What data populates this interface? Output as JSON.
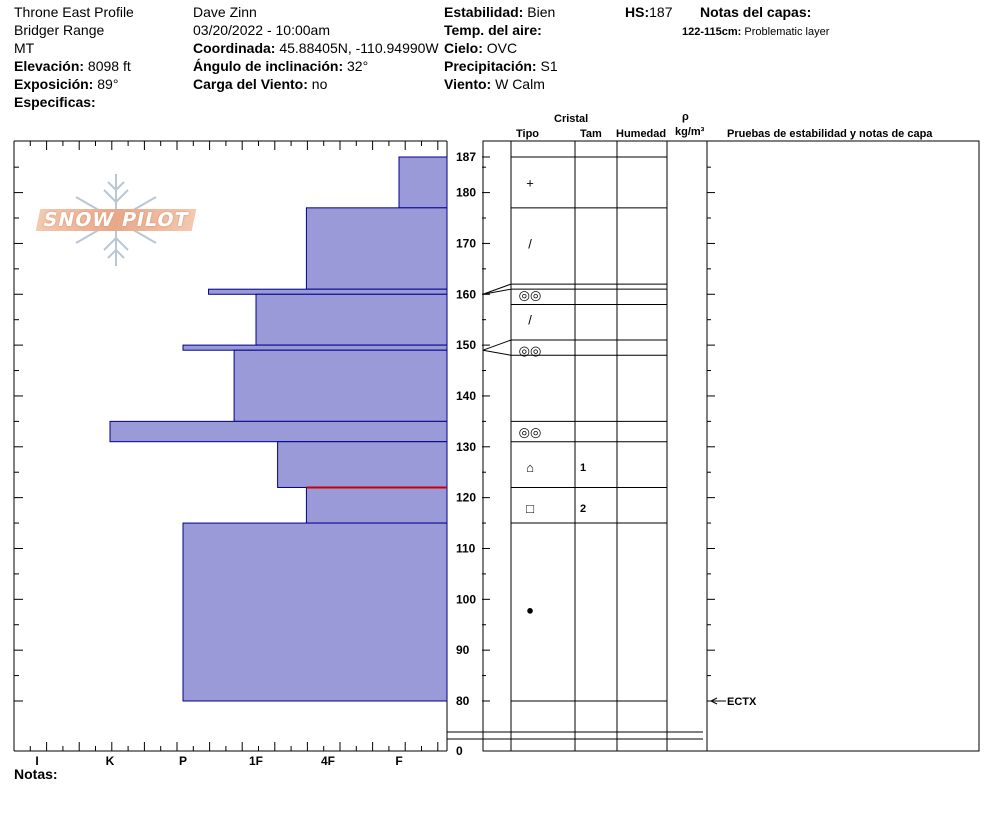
{
  "header": {
    "profile_name": "Throne East Profile",
    "range": "Bridger Range",
    "state": "MT",
    "elevation_label": "Elevación:",
    "elevation_value": "8098 ft",
    "aspect_label": "Exposición:",
    "aspect_value": "89°",
    "specifics_label": "Especificas:",
    "observer": "Dave Zinn",
    "datetime": "03/20/2022 - 10:00am",
    "coord_label": "Coordinada:",
    "coord_value": "45.88405N, -110.94990W",
    "slope_label": "Ángulo de inclinación:",
    "slope_value": "32°",
    "wind_load_label": "Carga del Viento:",
    "wind_load_value": "no",
    "stability_label": "Estabilidad:",
    "stability_value": "Bien",
    "air_temp_label": "Temp. del aire:",
    "air_temp_value": "",
    "sky_label": "Cielo:",
    "sky_value": "OVC",
    "precip_label": "Precipitación:",
    "precip_value": "S1",
    "wind_label": "Viento:",
    "wind_value": "W Calm",
    "hs_label": "HS:",
    "hs_value": "187",
    "layer_notes_title": "Notas del capas:",
    "layer_note_range": "122-115cm:",
    "layer_note_text": "Problematic layer"
  },
  "columns": {
    "crystal": "Cristal",
    "type": "Tipo",
    "size": "Tam",
    "moisture": "Humedad",
    "density_symbol": "ρ",
    "density_unit": "kg/m³",
    "tests": "Pruebas de estabilidad y notas de capa"
  },
  "notes_label": "Notas:",
  "logo_text": "SNOW PILOT",
  "colors": {
    "bar_fill": "#9a9ad8",
    "bar_stroke": "#00008b",
    "problem_line": "#cc0000",
    "axis": "#000000"
  },
  "chart_data": {
    "type": "bar",
    "orientation": "horizontal",
    "y_ticks": [
      0,
      80,
      90,
      100,
      110,
      120,
      130,
      140,
      150,
      160,
      170,
      180,
      187
    ],
    "ylim": [
      0,
      187
    ],
    "x_ticks": [
      "I",
      "K",
      "P",
      "1F",
      "4F",
      "F"
    ],
    "hardness_layers": [
      {
        "top": 187,
        "bottom": 177,
        "hardness": "F"
      },
      {
        "top": 177,
        "bottom": 161,
        "hardness": "4F-"
      },
      {
        "top": 161,
        "bottom": 160,
        "hardness": "P+"
      },
      {
        "top": 160,
        "bottom": 150,
        "hardness": "1F"
      },
      {
        "top": 150,
        "bottom": 149,
        "hardness": "P"
      },
      {
        "top": 149,
        "bottom": 135,
        "hardness": "1F+"
      },
      {
        "top": 135,
        "bottom": 131,
        "hardness": "K"
      },
      {
        "top": 131,
        "bottom": 122,
        "hardness": "1F-"
      },
      {
        "top": 122,
        "bottom": 115,
        "hardness": "4F-"
      },
      {
        "top": 115,
        "bottom": 80,
        "hardness": "P"
      }
    ],
    "hardness_index": {
      "F": 5,
      "4F-": 3.7,
      "P+": 2.35,
      "1F": 3,
      "P": 2,
      "1F+": 2.7,
      "K": 1,
      "1F-": 3.3
    },
    "layer_boundaries": [
      187,
      177,
      162,
      161,
      158,
      151,
      148,
      135,
      131,
      122,
      115,
      80
    ],
    "grain_symbols": [
      {
        "height": 182,
        "symbol": "+"
      },
      {
        "height": 170,
        "symbol": "/"
      },
      {
        "height": 160,
        "symbol": "◎◎"
      },
      {
        "height": 155,
        "symbol": "/"
      },
      {
        "height": 149,
        "symbol": "◎◎"
      },
      {
        "height": 133,
        "symbol": "◎◎"
      },
      {
        "height": 126,
        "symbol": "⌂"
      },
      {
        "height": 118,
        "symbol": "□"
      },
      {
        "height": 98,
        "symbol": "●"
      }
    ],
    "grain_sizes": [
      {
        "height": 126,
        "size": "1"
      },
      {
        "height": 118,
        "size": "2"
      }
    ],
    "problem_layer_height": 122,
    "test_results": [
      {
        "height": 80,
        "label": "ECTX"
      }
    ]
  }
}
